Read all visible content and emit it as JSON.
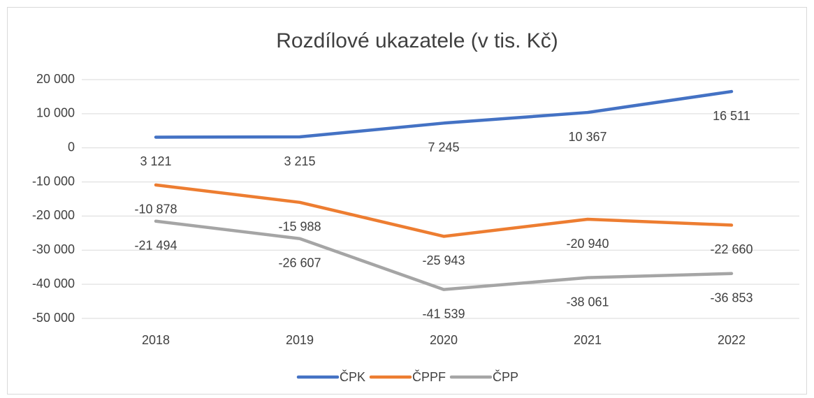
{
  "chart_data": {
    "type": "line",
    "title": "Rozdílové ukazatele (v tis. Kč)",
    "categories": [
      "2018",
      "2019",
      "2020",
      "2021",
      "2022"
    ],
    "series": [
      {
        "name": "ČPK",
        "color": "#4472c4",
        "values": [
          3121,
          3215,
          7245,
          10367,
          16511
        ],
        "value_labels": [
          "3 121",
          "3 215",
          "7 245",
          "10 367",
          "16 511"
        ]
      },
      {
        "name": "ČPPF",
        "color": "#ed7d31",
        "values": [
          -10878,
          -15988,
          -25943,
          -20940,
          -22660
        ],
        "value_labels": [
          "-10 878",
          "-15 988",
          "-25 943",
          "-20 940",
          "-22 660"
        ]
      },
      {
        "name": "ČPP",
        "color": "#a5a5a5",
        "values": [
          -21494,
          -26607,
          -41539,
          -38061,
          -36853
        ],
        "value_labels": [
          "-21 494",
          "-26 607",
          "-41 539",
          "-38 061",
          "-36 853"
        ]
      }
    ],
    "ylim": [
      -50000,
      20000
    ],
    "yticks": [
      {
        "value": -50000,
        "label": "-50 000"
      },
      {
        "value": -40000,
        "label": "-40 000"
      },
      {
        "value": -30000,
        "label": "-30 000"
      },
      {
        "value": -20000,
        "label": "-20 000"
      },
      {
        "value": -10000,
        "label": "-10 000"
      },
      0,
      {
        "value": 10000,
        "label": "10 000"
      },
      {
        "value": 20000,
        "label": "20 000"
      }
    ],
    "grid": true,
    "legend": "bottom"
  }
}
